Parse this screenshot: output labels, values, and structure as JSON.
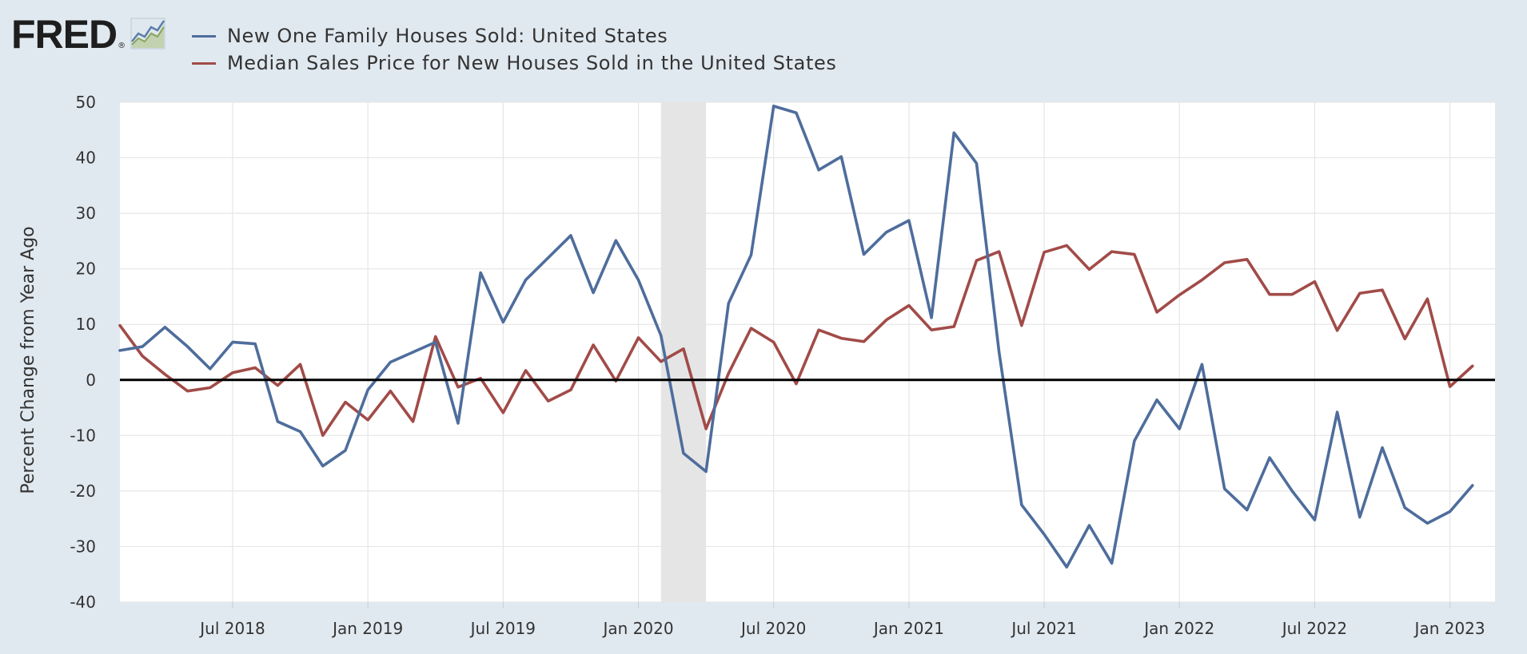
{
  "logo": {
    "text": "FRED",
    "reg": "®"
  },
  "colors": {
    "series1": "#4e6d9c",
    "series2": "#a14b48",
    "background": "#e1e9f0",
    "plot": "#ffffff",
    "grid": "#e6e6e6",
    "recession": "#e5e5e5",
    "zero": "#000000"
  },
  "chart_data": {
    "type": "line",
    "title": "",
    "xlabel": "",
    "ylabel": "Percent Change from Year Ago",
    "ylim": [
      -40,
      50
    ],
    "yticks": [
      50,
      40,
      30,
      20,
      10,
      0,
      -10,
      -20,
      -30,
      -40
    ],
    "xticks": [
      "Jul 2018",
      "Jan 2019",
      "Jul 2019",
      "Jan 2020",
      "Jul 2020",
      "Jan 2021",
      "Jul 2021",
      "Jan 2022",
      "Jul 2022",
      "Jan 2023"
    ],
    "x_start": "Feb 2018",
    "x_end": "Mar 2023",
    "recession": {
      "start_month_index": 24,
      "end_month_index": 26,
      "label": "Feb 2020 - Apr 2020"
    },
    "grid": true,
    "zero_line": true,
    "legend_position": "top-left",
    "series": [
      {
        "name": "New One Family Houses Sold: United States",
        "color": "#4e6d9c",
        "values": [
          5.3,
          6.0,
          9.5,
          6.0,
          2.0,
          6.8,
          6.5,
          -7.5,
          -9.3,
          -15.5,
          -12.7,
          -1.8,
          3.2,
          5.0,
          6.8,
          -7.8,
          19.3,
          10.4,
          18.0,
          22.0,
          26.0,
          15.7,
          25.1,
          18.0,
          8.0,
          -13.2,
          -16.5,
          13.8,
          22.5,
          49.3,
          48.1,
          37.8,
          40.2,
          22.6,
          26.6,
          28.7,
          11.2,
          44.5,
          39.0,
          5.0,
          -22.5,
          -27.8,
          -33.7,
          -26.2,
          -33.0,
          -11.0,
          -3.6,
          -8.8,
          2.8,
          -19.6,
          -23.4,
          -14.0,
          -20.0,
          -25.2,
          -5.8,
          -24.7,
          -12.2,
          -23.0,
          -25.8,
          -23.7,
          -19.0
        ],
        "labels": [
          "Feb 2018",
          "Mar 2018",
          "Apr 2018",
          "May 2018",
          "Jun 2018",
          "Jul 2018",
          "Aug 2018",
          "Sep 2018",
          "Oct 2018",
          "Nov 2018",
          "Dec 2018",
          "Jan 2019",
          "Feb 2019",
          "Mar 2019",
          "Apr 2019",
          "May 2019",
          "Jun 2019",
          "Jul 2019",
          "Aug 2019",
          "Sep 2019",
          "Oct 2019",
          "Nov 2019",
          "Dec 2019",
          "Jan 2020",
          "Feb 2020",
          "Mar 2020",
          "Apr 2020",
          "May 2020",
          "Jun 2020",
          "Jul 2020",
          "Aug 2020",
          "Sep 2020",
          "Oct 2020",
          "Nov 2020",
          "Dec 2020",
          "Jan 2021",
          "Feb 2021",
          "Mar 2021",
          "Apr 2021",
          "May 2021",
          "Jun 2021",
          "Jul 2021",
          "Aug 2021",
          "Sep 2021",
          "Oct 2021",
          "Nov 2021",
          "Dec 2021",
          "Jan 2022",
          "Feb 2022",
          "Mar 2022",
          "Apr 2022",
          "May 2022",
          "Jun 2022",
          "Jul 2022",
          "Aug 2022",
          "Sep 2022",
          "Oct 2022",
          "Nov 2022",
          "Dec 2022",
          "Jan 2023",
          "Feb 2023"
        ]
      },
      {
        "name": "Median Sales Price for New Houses Sold in the United States",
        "color": "#a14b48",
        "values": [
          9.8,
          4.3,
          1.0,
          -2.0,
          -1.4,
          1.3,
          2.2,
          -1.0,
          2.8,
          -10.0,
          -4.0,
          -7.2,
          -2.0,
          -7.5,
          7.8,
          -1.3,
          0.3,
          -5.9,
          1.7,
          -3.8,
          -1.8,
          6.3,
          -0.2,
          7.6,
          3.3,
          5.6,
          -8.8,
          1.2,
          9.3,
          6.8,
          -0.7,
          9.0,
          7.5,
          6.9,
          10.8,
          13.4,
          9.0,
          9.6,
          21.5,
          23.1,
          9.8,
          23.0,
          24.2,
          19.9,
          23.1,
          22.6,
          12.2,
          15.3,
          18.0,
          21.1,
          21.7,
          15.4,
          15.4,
          17.7,
          8.9,
          15.6,
          16.2,
          7.4,
          14.6,
          -1.2,
          2.5
        ],
        "labels": [
          "Feb 2018",
          "Mar 2018",
          "Apr 2018",
          "May 2018",
          "Jun 2018",
          "Jul 2018",
          "Aug 2018",
          "Sep 2018",
          "Oct 2018",
          "Nov 2018",
          "Dec 2018",
          "Jan 2019",
          "Feb 2019",
          "Mar 2019",
          "Apr 2019",
          "May 2019",
          "Jun 2019",
          "Jul 2019",
          "Aug 2019",
          "Sep 2019",
          "Oct 2019",
          "Nov 2019",
          "Dec 2019",
          "Jan 2020",
          "Feb 2020",
          "Mar 2020",
          "Apr 2020",
          "May 2020",
          "Jun 2020",
          "Jul 2020",
          "Aug 2020",
          "Sep 2020",
          "Oct 2020",
          "Nov 2020",
          "Dec 2020",
          "Jan 2021",
          "Feb 2021",
          "Mar 2021",
          "Apr 2021",
          "May 2021",
          "Jun 2021",
          "Jul 2021",
          "Aug 2021",
          "Sep 2021",
          "Oct 2021",
          "Nov 2021",
          "Dec 2021",
          "Jan 2022",
          "Feb 2022",
          "Mar 2022",
          "Apr 2022",
          "May 2022",
          "Jun 2022",
          "Jul 2022",
          "Aug 2022",
          "Sep 2022",
          "Oct 2022",
          "Nov 2022",
          "Dec 2022",
          "Jan 2023",
          "Feb 2023"
        ]
      }
    ]
  }
}
